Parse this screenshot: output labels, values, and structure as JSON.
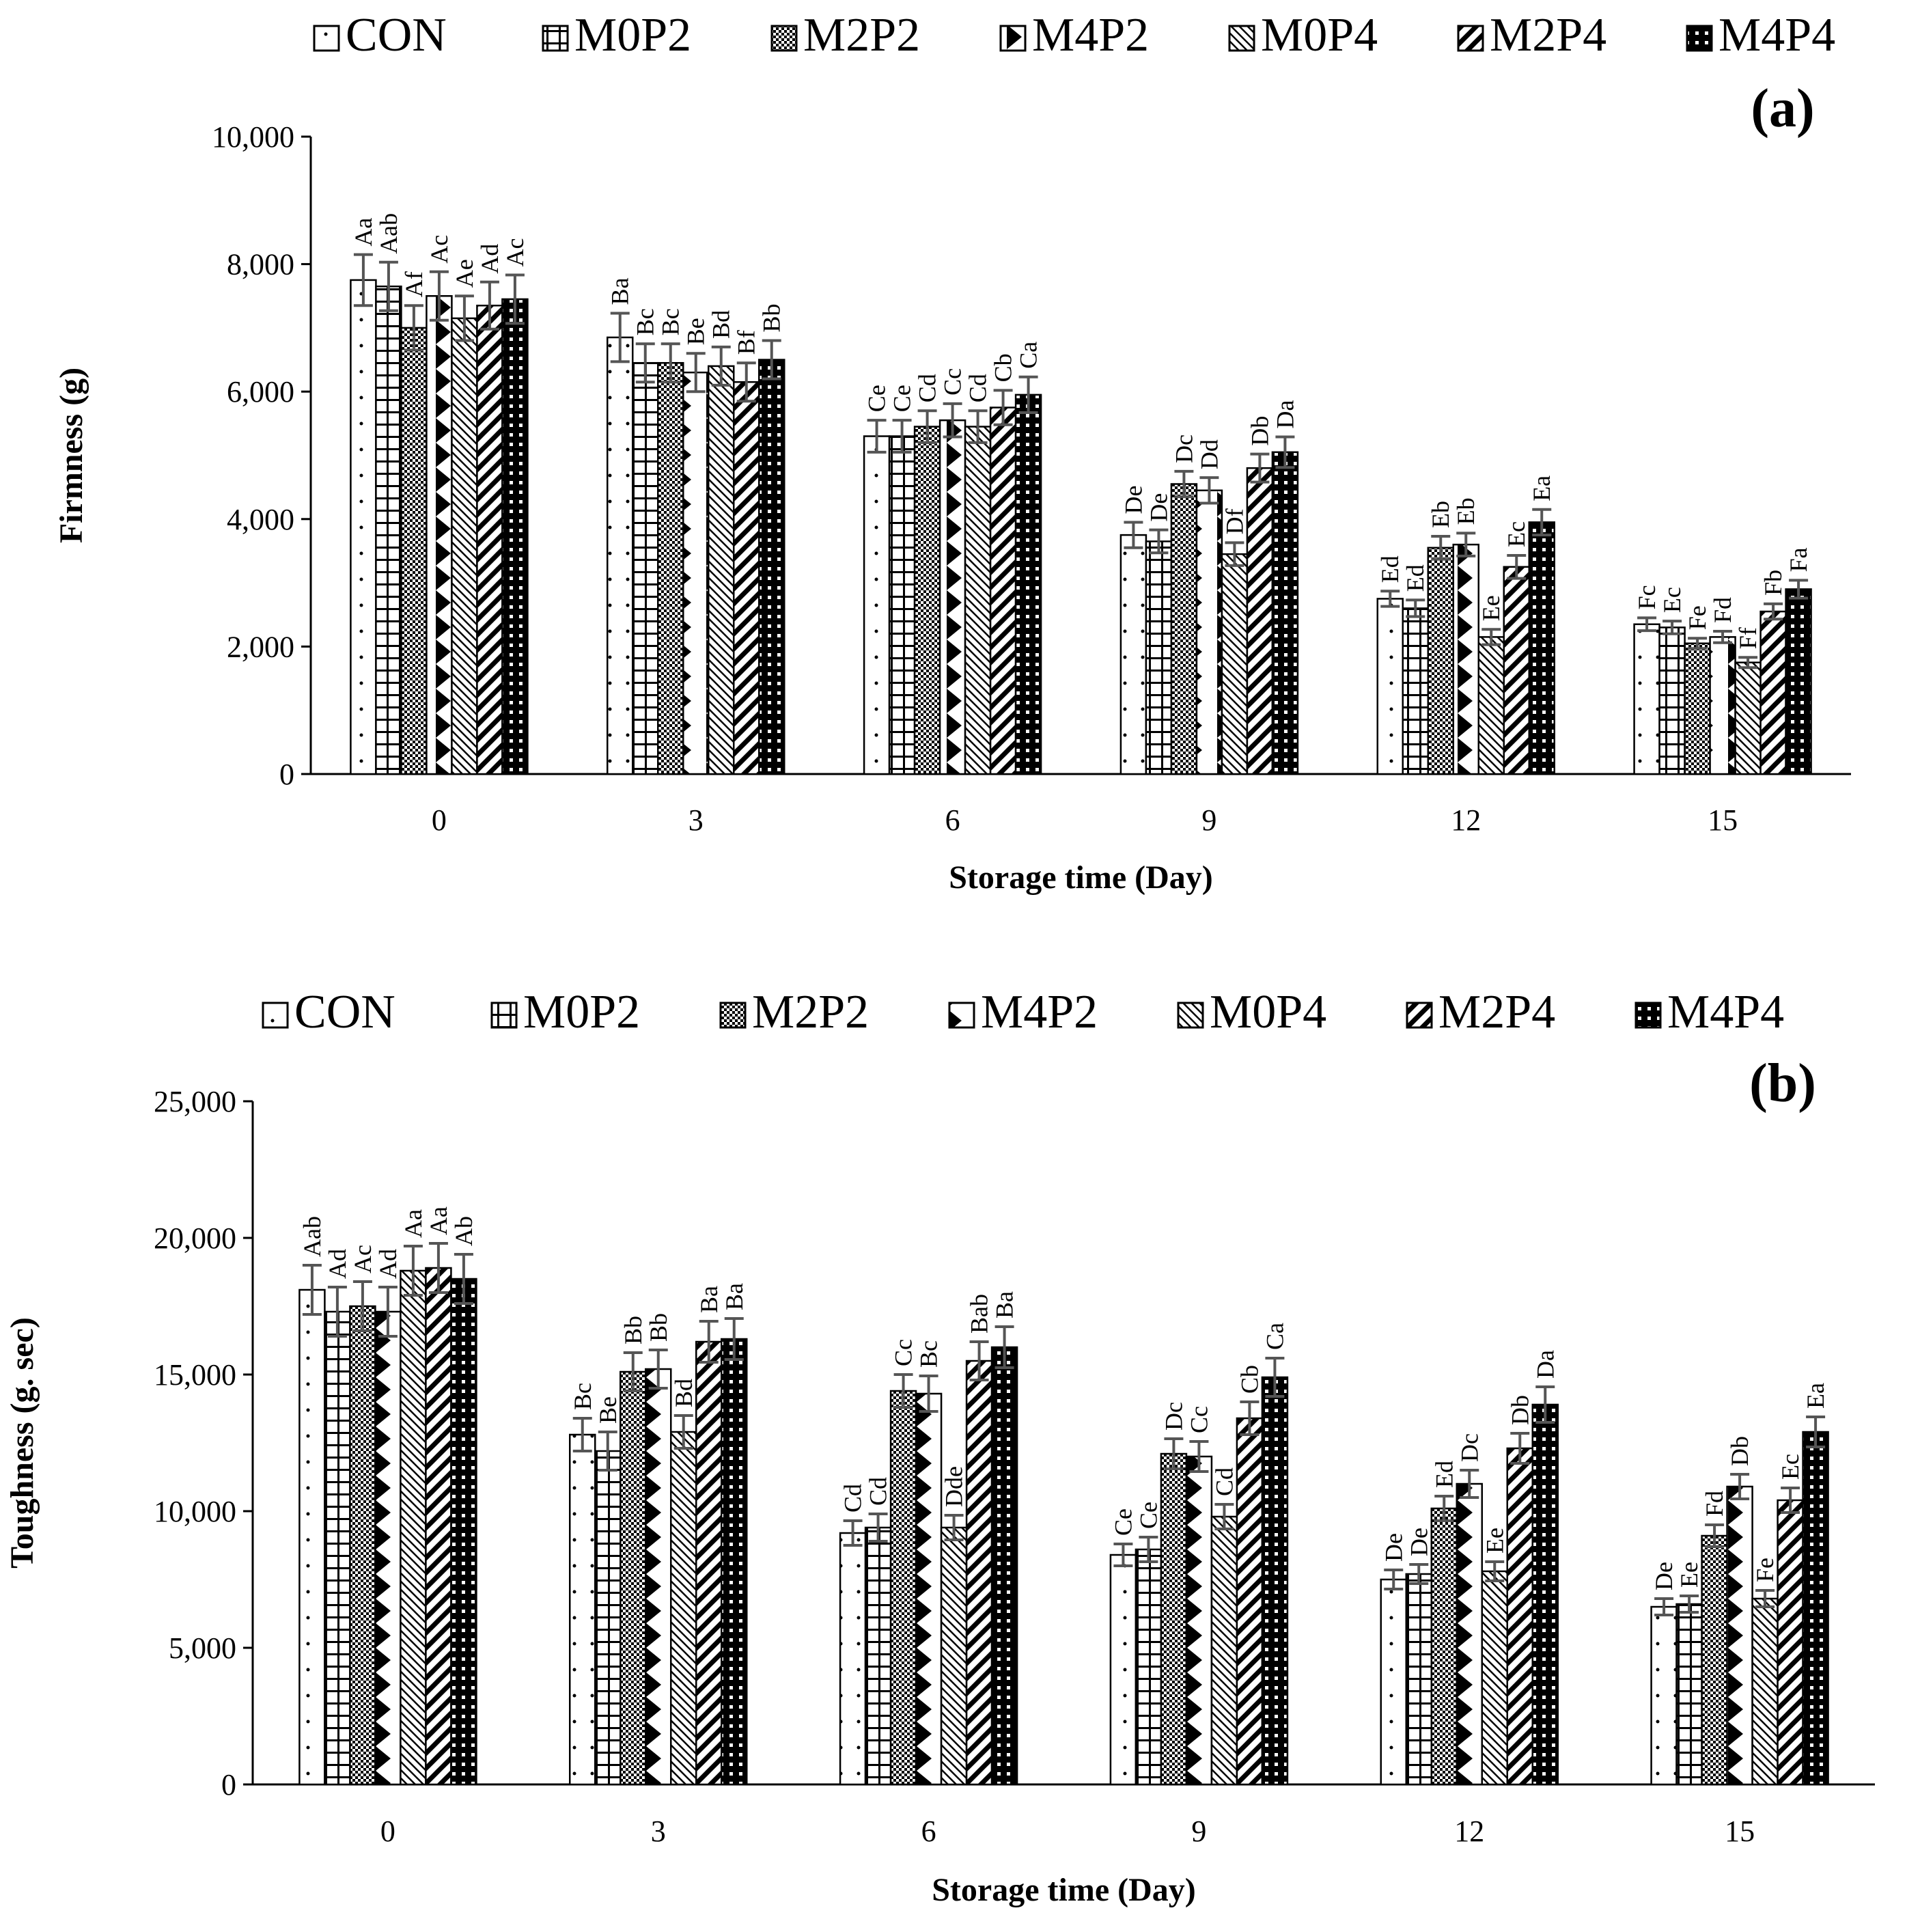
{
  "chart_data": [
    {
      "type": "bar",
      "panel": "(a)",
      "xlabel": "Storage time (Day)",
      "ylabel": "Firmness (g)",
      "ylim": [
        0,
        10000
      ],
      "yticks": [
        0,
        2000,
        4000,
        6000,
        8000,
        10000
      ],
      "ytick_labels": [
        "0",
        "2,000",
        "4,000",
        "6,000",
        "8,000",
        "10,000"
      ],
      "categories": [
        "0",
        "3",
        "6",
        "9",
        "12",
        "15"
      ],
      "legend": [
        "CON",
        "M0P2",
        "M2P2",
        "M4P2",
        "M0P4",
        "M2P4",
        "M4P4"
      ],
      "series": [
        {
          "name": "CON",
          "values": [
            7750,
            6850,
            5300,
            3750,
            2750,
            2350
          ],
          "errors": [
            400,
            380,
            250,
            200,
            120,
            100
          ],
          "labels": [
            "Aa",
            "Ba",
            "Ce",
            "De",
            "Ed",
            "Fc"
          ]
        },
        {
          "name": "M0P2",
          "values": [
            7650,
            6450,
            5300,
            3650,
            2600,
            2300
          ],
          "errors": [
            380,
            300,
            250,
            180,
            130,
            100
          ],
          "labels": [
            "Aab",
            "Bc",
            "Ce",
            "De",
            "Ed",
            "Ec"
          ]
        },
        {
          "name": "M2P2",
          "values": [
            7000,
            6450,
            5450,
            4550,
            3550,
            2050
          ],
          "errors": [
            350,
            300,
            250,
            200,
            180,
            80
          ],
          "labels": [
            "Af",
            "Bc",
            "Cd",
            "Dc",
            "Eb",
            "Fe"
          ]
        },
        {
          "name": "M4P2",
          "values": [
            7500,
            6300,
            5550,
            4450,
            3600,
            2150
          ],
          "errors": [
            380,
            300,
            260,
            200,
            180,
            90
          ],
          "labels": [
            "Ac",
            "Be",
            "Cc",
            "Dd",
            "Eb",
            "Fd"
          ]
        },
        {
          "name": "M0P4",
          "values": [
            7150,
            6400,
            5450,
            3450,
            2150,
            1750
          ],
          "errors": [
            350,
            300,
            250,
            180,
            120,
            80
          ],
          "labels": [
            "Ae",
            "Bd",
            "Cd",
            "Df",
            "Ee",
            "Ff"
          ]
        },
        {
          "name": "M2P4",
          "values": [
            7350,
            6150,
            5750,
            4800,
            3250,
            2550
          ],
          "errors": [
            370,
            300,
            270,
            220,
            180,
            120
          ],
          "labels": [
            "Ad",
            "Bf",
            "Cb",
            "Db",
            "Ec",
            "Fb"
          ]
        },
        {
          "name": "M4P4",
          "values": [
            7450,
            6500,
            5950,
            5050,
            3950,
            2900
          ],
          "errors": [
            380,
            300,
            280,
            240,
            200,
            140
          ],
          "labels": [
            "Ac",
            "Bb",
            "Ca",
            "Da",
            "Ea",
            "Fa"
          ]
        }
      ]
    },
    {
      "type": "bar",
      "panel": "(b)",
      "xlabel": "Storage time (Day)",
      "ylabel": "Toughness (g. sec)",
      "ylim": [
        0,
        25000
      ],
      "yticks": [
        0,
        5000,
        10000,
        15000,
        20000,
        25000
      ],
      "ytick_labels": [
        "0",
        "5,000",
        "10,000",
        "15,000",
        "20,000",
        "25,000"
      ],
      "categories": [
        "0",
        "3",
        "6",
        "9",
        "12",
        "15"
      ],
      "legend": [
        "CON",
        "M0P2",
        "M2P2",
        "M4P2",
        "M0P4",
        "M2P4",
        "M4P4"
      ],
      "series": [
        {
          "name": "CON",
          "values": [
            18100,
            12800,
            9200,
            8400,
            7500,
            6500
          ],
          "errors": [
            900,
            600,
            450,
            400,
            350,
            300
          ],
          "labels": [
            "Aab",
            "Bc",
            "Cd",
            "Ce",
            "De",
            "De"
          ]
        },
        {
          "name": "M0P2",
          "values": [
            17300,
            12200,
            9400,
            8600,
            7700,
            6600
          ],
          "errors": [
            900,
            700,
            500,
            450,
            350,
            300
          ],
          "labels": [
            "Ad",
            "Be",
            "Cd",
            "Ce",
            "De",
            "Ee"
          ]
        },
        {
          "name": "M2P2",
          "values": [
            17500,
            15100,
            14400,
            12100,
            10100,
            9100
          ],
          "errors": [
            900,
            700,
            600,
            550,
            450,
            400
          ],
          "labels": [
            "Ac",
            "Bb",
            "Cc",
            "Dc",
            "Ed",
            "Fd"
          ]
        },
        {
          "name": "M4P2",
          "values": [
            17300,
            15200,
            14300,
            12000,
            11000,
            10900
          ],
          "errors": [
            900,
            700,
            650,
            550,
            500,
            450
          ],
          "labels": [
            "Ad",
            "Bb",
            "Bc",
            "Cc",
            "Dc",
            "Db"
          ]
        },
        {
          "name": "M0P4",
          "values": [
            18800,
            12900,
            9400,
            9800,
            7800,
            6800
          ],
          "errors": [
            900,
            600,
            450,
            450,
            350,
            300
          ],
          "labels": [
            "Aa",
            "Bd",
            "Dde",
            "Cd",
            "Ee",
            "Fe"
          ]
        },
        {
          "name": "M2P4",
          "values": [
            18900,
            16200,
            15500,
            13400,
            12300,
            10400
          ],
          "errors": [
            900,
            750,
            700,
            600,
            550,
            450
          ],
          "labels": [
            "Aa",
            "Ba",
            "Bab",
            "Cb",
            "Db",
            "Ec"
          ]
        },
        {
          "name": "M4P4",
          "values": [
            18500,
            16300,
            16000,
            14900,
            13900,
            12900
          ],
          "errors": [
            900,
            750,
            750,
            700,
            650,
            550
          ],
          "labels": [
            "Ab",
            "Ba",
            "Ba",
            "Ca",
            "Da",
            "Ea"
          ]
        }
      ]
    }
  ]
}
